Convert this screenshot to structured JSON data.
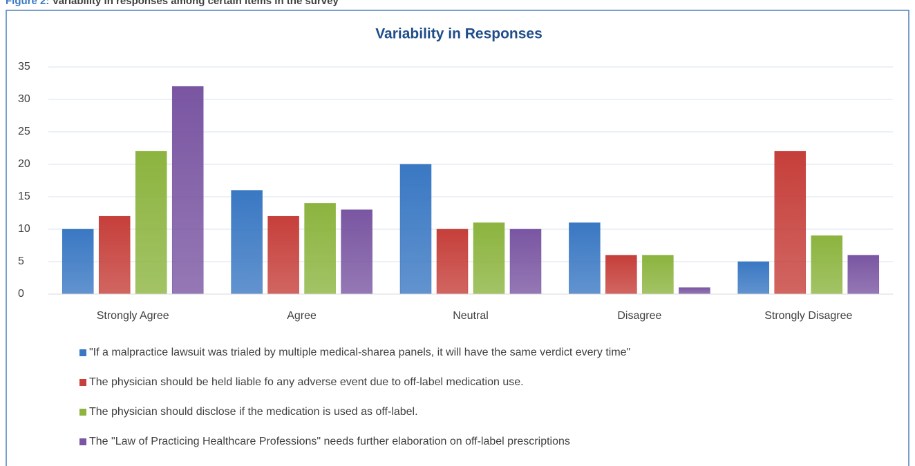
{
  "caption": {
    "label": "Figure 2:",
    "text": "Variability in responses among certain items in the survey"
  },
  "chart_data": {
    "type": "bar",
    "title": "Variability in Responses",
    "categories": [
      "Strongly Agree",
      "Agree",
      "Neutral",
      "Disagree",
      "Strongly Disagree"
    ],
    "series": [
      {
        "name": "\"If a malpractice lawsuit was trialed by multiple medical-sharea panels, it will have the same verdict every time\"",
        "color": "#3a78c3",
        "values": [
          10,
          16,
          20,
          11,
          5
        ]
      },
      {
        "name": "The physician should be held liable fo any adverse event due to off-label medication use.",
        "color": "#c63f3a",
        "values": [
          12,
          12,
          10,
          6,
          22
        ]
      },
      {
        "name": "The physician should disclose if the medication is used as off-label.",
        "color": "#8cb43f",
        "values": [
          22,
          14,
          11,
          6,
          9
        ]
      },
      {
        "name": "The \"Law of Practicing Healthcare Professions\" needs further elaboration on off-label prescriptions",
        "color": "#7a56a2",
        "values": [
          32,
          13,
          10,
          1,
          6
        ]
      }
    ],
    "ylim": [
      0,
      35
    ],
    "yticks": [
      0,
      5,
      10,
      15,
      20,
      25,
      30,
      35
    ],
    "grid": true,
    "legend": "bottom"
  }
}
